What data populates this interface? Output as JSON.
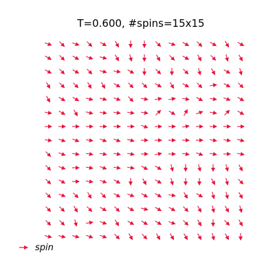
{
  "chart_data": {
    "type": "quiver",
    "title": "T=0.600, #spins=15x15",
    "grid_size": [
      15,
      15
    ],
    "arrow_color": "#e8153c",
    "legend": {
      "label": "spin",
      "placement": "bottom-left"
    },
    "axes_visible": false,
    "angles_deg": [
      [
        -20,
        -45,
        -20,
        -45,
        -30,
        -60,
        -90,
        -90,
        -45,
        -20,
        -30,
        -45,
        -30,
        -60,
        -30
      ],
      [
        -30,
        -45,
        -30,
        -20,
        -15,
        -60,
        -75,
        -90,
        -60,
        -45,
        -30,
        -60,
        -45,
        -75,
        -60
      ],
      [
        -30,
        -45,
        -30,
        -45,
        -15,
        -10,
        -30,
        -90,
        -45,
        -90,
        -45,
        -75,
        -60,
        -30,
        -75
      ],
      [
        -60,
        -45,
        -45,
        -60,
        -60,
        -30,
        -45,
        -45,
        -30,
        -60,
        -30,
        -45,
        10,
        -30,
        -45
      ],
      [
        -60,
        -30,
        -30,
        -15,
        -15,
        -20,
        -45,
        -10,
        10,
        10,
        -10,
        -30,
        -10,
        -20,
        -30
      ],
      [
        -10,
        -30,
        -60,
        -15,
        -10,
        -10,
        -10,
        -10,
        45,
        -30,
        60,
        20,
        -10,
        45,
        -30
      ],
      [
        0,
        0,
        0,
        0,
        0,
        0,
        0,
        -20,
        0,
        0,
        10,
        0,
        0,
        0,
        0
      ],
      [
        -10,
        -20,
        -20,
        -10,
        -20,
        -20,
        -15,
        0,
        0,
        0,
        0,
        0,
        -10,
        -10,
        -15
      ],
      [
        -45,
        -20,
        -10,
        -10,
        -10,
        -10,
        -10,
        0,
        10,
        0,
        -10,
        -20,
        -10,
        0,
        -10
      ],
      [
        -45,
        -20,
        0,
        -10,
        -20,
        -10,
        -10,
        -30,
        -30,
        -75,
        -90,
        -75,
        -90,
        -75,
        -60
      ],
      [
        -45,
        -30,
        0,
        -10,
        -20,
        -30,
        -90,
        -60,
        -30,
        -75,
        -90,
        -90,
        -60,
        -75,
        -45
      ],
      [
        -45,
        -20,
        -45,
        -60,
        -45,
        -30,
        -20,
        -30,
        -30,
        -10,
        -60,
        -30,
        -75,
        -75,
        -60
      ],
      [
        -45,
        -45,
        -60,
        -45,
        -30,
        -45,
        -30,
        -15,
        -30,
        -30,
        -45,
        -60,
        -75,
        -60,
        -75
      ],
      [
        -45,
        -45,
        -75,
        10,
        -20,
        -60,
        -30,
        -30,
        -30,
        -20,
        -45,
        -60,
        -90,
        -45,
        -60
      ],
      [
        -15,
        -15,
        -15,
        -20,
        -20,
        -45,
        -60,
        -45,
        -60,
        -60,
        -60,
        -60,
        -75,
        -60,
        -90
      ]
    ]
  }
}
